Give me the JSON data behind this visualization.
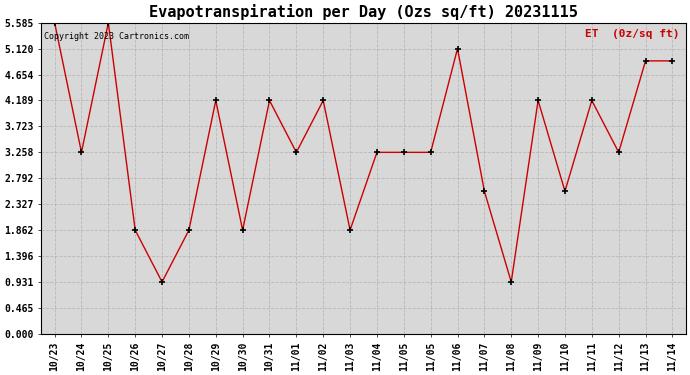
{
  "title": "Evapotranspiration per Day (Ozs sq/ft) 20231115",
  "legend_label": "ET  (0z/sq ft)",
  "copyright": "Copyright 2023 Cartronics.com",
  "dates": [
    "10/23",
    "10/24",
    "10/25",
    "10/26",
    "10/27",
    "10/28",
    "10/29",
    "10/30",
    "10/31",
    "11/01",
    "11/02",
    "11/03",
    "11/04",
    "11/05",
    "11/05",
    "11/06",
    "11/07",
    "11/08",
    "11/09",
    "11/10",
    "11/11",
    "11/12",
    "11/13",
    "11/14"
  ],
  "et_values": [
    5.585,
    3.258,
    5.585,
    1.862,
    0.931,
    1.862,
    4.189,
    1.862,
    4.189,
    3.258,
    4.189,
    1.862,
    3.258,
    3.258,
    3.258,
    5.12,
    2.56,
    0.931,
    4.189,
    2.56,
    4.189,
    3.258,
    4.9,
    4.9
  ],
  "yticks": [
    0.0,
    0.465,
    0.931,
    1.396,
    1.862,
    2.327,
    2.792,
    3.258,
    3.723,
    4.189,
    4.654,
    5.12,
    5.585
  ],
  "ylim": [
    0.0,
    5.585
  ],
  "line_color": "#cc0000",
  "marker_color": "black",
  "plot_bg_color": "#d8d8d8",
  "fig_bg_color": "#ffffff",
  "grid_color": "#aaaaaa",
  "title_color": "black",
  "legend_color": "#cc0000",
  "copyright_color": "black",
  "title_fontsize": 11,
  "tick_fontsize": 7,
  "legend_fontsize": 8,
  "copyright_fontsize": 6
}
